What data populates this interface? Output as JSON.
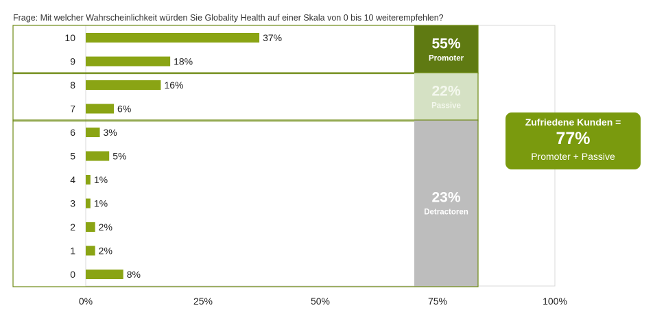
{
  "question": "Frage: Mit welcher Wahrscheinlichkeit würden Sie Globality Health auf einer Skala von 0 bis 10 weiterempfehlen?",
  "chart_data": {
    "type": "bar",
    "orientation": "horizontal",
    "categories": [
      "10",
      "9",
      "8",
      "7",
      "6",
      "5",
      "4",
      "3",
      "2",
      "1",
      "0"
    ],
    "values": [
      37,
      18,
      16,
      6,
      3,
      5,
      1,
      1,
      2,
      2,
      8
    ],
    "value_labels": [
      "37%",
      "18%",
      "16%",
      "6%",
      "3%",
      "5%",
      "1%",
      "1%",
      "2%",
      "2%",
      "8%"
    ],
    "xlim": [
      0,
      100
    ],
    "xticks": [
      0,
      25,
      50,
      75,
      100
    ],
    "xtick_labels": [
      "0%",
      "25%",
      "50%",
      "75%",
      "100%"
    ],
    "bar_color": "#8aa414",
    "groups": [
      {
        "value": "55%",
        "label": "Promoter",
        "color": "#5f7a12",
        "text_color": "#ffffff"
      },
      {
        "value": "22%",
        "label": "Passive",
        "color": "#d5e1c4",
        "text_color": "#f4f8ee"
      },
      {
        "value": "23%",
        "label": "Detractoren",
        "color": "#bdbdbd",
        "text_color": "#ffffff"
      }
    ]
  },
  "callout": {
    "title": "Zufriedene Kunden =",
    "value": "77%",
    "subtitle": "Promoter + Passive",
    "color": "#7a9a0e"
  }
}
